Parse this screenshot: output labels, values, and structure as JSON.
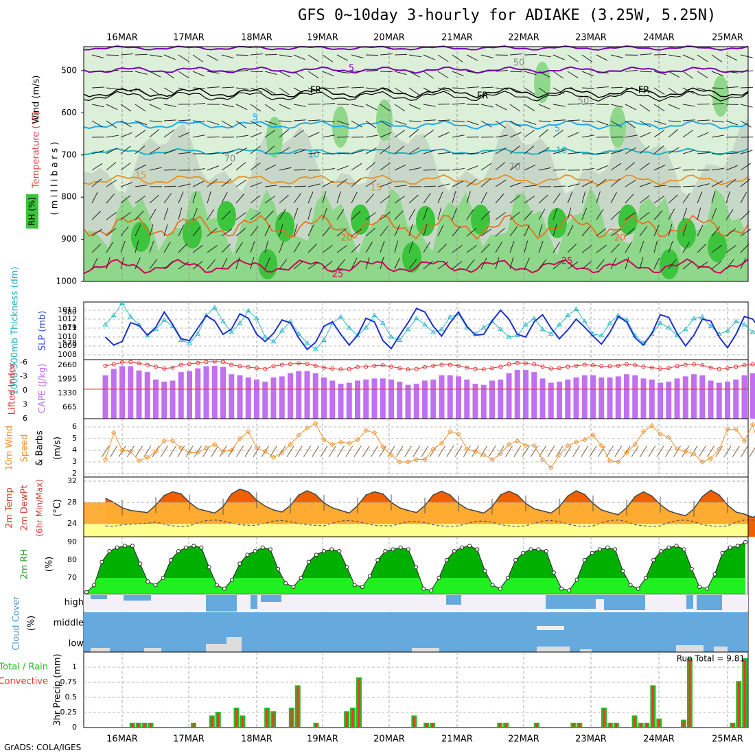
{
  "title": "GFS 0~10day 3-hourly for ADIAKE (3.25W, 5.25N)",
  "credit": "GrADS: COLA/IGES",
  "dates": [
    "16MAR",
    "17MAR",
    "18MAR",
    "19MAR",
    "20MAR",
    "21MAR",
    "22MAR",
    "23MAR",
    "24MAR",
    "25MAR"
  ],
  "colors": {
    "rh_light": "#dcefd9",
    "rh_mid": "#8fd78a",
    "rh_dark": "#3cc43c",
    "purple": "#7a00b8",
    "cyan": "#22a8e8",
    "orange": "#e89020",
    "red": "#d0005a",
    "slp": "#1b2fd0",
    "thick": "#2ab8c8",
    "cape": "#c070f0",
    "li": "#e83030",
    "wind": "#f09030",
    "temp_dark": "#f06000",
    "temp_mid": "#ffaa30",
    "dew": "#ffff90",
    "rh2m_dark": "#00b000",
    "rh2m_light": "#20f020",
    "cloud": "#66aadd",
    "precip_total": "#20c020",
    "precip_conv": "#ff3030"
  },
  "panels": {
    "upper": {
      "ylabel_rh": "RH (%)",
      "ylabel_temp": "Temperature (°C)",
      "ylabel_wind": "Wind (m/s)",
      "ylabel_mb": "( m i l l i b a r s )",
      "pressure_ticks": [
        "500",
        "600",
        "700",
        "800",
        "900",
        "1000"
      ],
      "contour_labels": [
        "5",
        "FR",
        "FR",
        "FR",
        "5",
        "5",
        "10",
        "10",
        "15",
        "15",
        "20",
        "20",
        "25",
        "25",
        "50",
        "50",
        "70",
        "70"
      ]
    },
    "slp": {
      "ylabel_left": "1000-500mb Thickness (dm)",
      "ylabel_right": "SLP (mb)",
      "ticks_left": [
        "580",
        "579",
        "578"
      ],
      "ticks_right": [
        "1013",
        "1012",
        "1011",
        "1010",
        "1009",
        "1008"
      ]
    },
    "cape": {
      "ylabel_left": "Lifted Index",
      "ylabel_right": "CAPE (J/kg)",
      "ticks_left": [
        "-6",
        "-3",
        "0",
        "3",
        "6"
      ],
      "ticks_right": [
        "2660",
        "1995",
        "1330",
        "665"
      ]
    },
    "wind": {
      "ylabel": "10m Wind Speed & Barbs",
      "ylabel_line1": "10m Wind",
      "ylabel_line2": "Speed",
      "ylabel_line3": "& Barbs",
      "unit": "(m/s)",
      "ticks": [
        "6",
        "5",
        "4",
        "3",
        "2"
      ]
    },
    "temp": {
      "ylabel_line1": "2m Temp",
      "ylabel_line2": "2m DewPt",
      "ylabel_line3": "(6hr Min/Max)",
      "unit": "(°C)",
      "ticks": [
        "32",
        "28",
        "24"
      ]
    },
    "rh2m": {
      "ylabel": "2m RH",
      "unit": "(%)",
      "ticks": [
        "90",
        "80",
        "70"
      ]
    },
    "cloud": {
      "ylabel": "Cloud Cover",
      "unit": "(%)",
      "levels": [
        "high",
        "middle",
        "low"
      ]
    },
    "precip": {
      "ylabel_left1": "Total / Rain",
      "ylabel_left2": "Convective",
      "ylabel": "3hr Precip (mm)",
      "ticks": [
        "1",
        "0.75",
        "0.5",
        "0.25",
        "0"
      ],
      "run_total": "Run Total = 9.81"
    }
  },
  "chart_data": [
    {
      "type": "line",
      "name": "slp",
      "title": "SLP",
      "x_step_hours": 3,
      "series": [
        {
          "name": "SLP (mb)",
          "values": [
            1010.0,
            1009.1,
            1009.5,
            1011.6,
            1011.3,
            1010.2,
            1011.1,
            1012.8,
            1011.4,
            1009.8,
            1009.6,
            1011.0,
            1012.4,
            1011.8,
            1010.3,
            1010.9,
            1012.6,
            1012.1,
            1010.3,
            1009.5,
            1010.4,
            1011.9,
            1011.6,
            1009.9,
            1008.6,
            1009.4,
            1011.2,
            1011.7,
            1010.3,
            1009.1,
            1010.2,
            1012.1,
            1011.7,
            1009.6,
            1008.7,
            1010.2,
            1011.6,
            1013.2,
            1012.8,
            1011.2,
            1010.1,
            1011.6,
            1012.8,
            1011.2,
            1010.2,
            1010.3,
            1011.8,
            1013.0,
            1012.0,
            1010.3,
            1010.0,
            1011.7,
            1012.5,
            1011.0,
            1009.8,
            1010.8,
            1012.0,
            1011.1,
            1010.1,
            1009.2,
            1010.5,
            1012.3,
            1011.7,
            1009.9,
            1009.1,
            1010.4,
            1012.5,
            1012.2,
            1010.4,
            1009.0,
            1010.2,
            1012.0,
            1011.8,
            1010.0,
            1008.8,
            1010.3,
            1012.3,
            1012.0,
            1010.7
          ]
        },
        {
          "name": "Thickness (dm)",
          "values": [
            579.2,
            579.8,
            580.6,
            579.7,
            579.2,
            578.5,
            578.9,
            579.5,
            579.1,
            578.2,
            578.0,
            578.6,
            579.8,
            580.3,
            579.4,
            578.7,
            579.3,
            580.1,
            579.6,
            578.4,
            578.1,
            578.8,
            579.4,
            578.6,
            578.0,
            577.6,
            578.2,
            579.3,
            579.7,
            579.0,
            578.5,
            579.0,
            579.8,
            579.3,
            578.4,
            578.2,
            578.9,
            579.6,
            579.2,
            578.7,
            578.9,
            579.7,
            579.9,
            579.0,
            578.6,
            579.0,
            579.4,
            578.9,
            578.4,
            578.5,
            579.2,
            579.6,
            578.9,
            578.6,
            579.2,
            579.8,
            580.2,
            579.4,
            578.6,
            578.5,
            579.3,
            579.8,
            579.5,
            578.5,
            578.0,
            578.6,
            579.3,
            579.0,
            578.5,
            578.9,
            579.6,
            579.7,
            579.1,
            578.6,
            578.8,
            579.4,
            579.2,
            578.7,
            579.0
          ]
        }
      ]
    },
    {
      "type": "bar",
      "name": "cape",
      "title": "CAPE & Lifted Index",
      "x_step_hours": 3,
      "series": [
        {
          "name": "CAPE (J/kg)",
          "values": [
            2050,
            2350,
            2480,
            2480,
            2280,
            2200,
            1850,
            1750,
            1800,
            2200,
            2250,
            2380,
            2480,
            2500,
            2450,
            2100,
            2050,
            1950,
            1850,
            1750,
            1950,
            2000,
            2150,
            2250,
            2250,
            2150,
            1950,
            1800,
            1650,
            1700,
            1800,
            1850,
            1900,
            1900,
            1850,
            1750,
            1600,
            1650,
            1800,
            1850,
            2050,
            2050,
            2000,
            1850,
            1650,
            1600,
            1800,
            1850,
            2150,
            2300,
            2300,
            2200,
            1900,
            1700,
            1750,
            1850,
            1950,
            2050,
            2050,
            1950,
            1950,
            2000,
            2100,
            2050,
            1900,
            1850,
            1700,
            1750,
            1900,
            2000,
            2100,
            2050,
            1800,
            1700,
            1750,
            1850,
            2050,
            2150,
            2050
          ]
        },
        {
          "name": "Lifted Index",
          "values": [
            -5.0,
            -5.3,
            -5.7,
            -5.8,
            -5.5,
            -5.2,
            -4.8,
            -4.4,
            -4.6,
            -5.2,
            -5.4,
            -5.6,
            -5.8,
            -5.9,
            -5.8,
            -5.2,
            -4.9,
            -4.7,
            -4.5,
            -4.3,
            -4.9,
            -5.2,
            -5.4,
            -5.5,
            -5.4,
            -5.0,
            -4.6,
            -4.4,
            -4.2,
            -4.3,
            -4.7,
            -4.8,
            -5.0,
            -5.1,
            -4.8,
            -4.5,
            -4.2,
            -4.3,
            -4.7,
            -5.0,
            -5.2,
            -5.2,
            -5.0,
            -4.6,
            -4.3,
            -4.2,
            -4.5,
            -4.8,
            -5.3,
            -5.6,
            -5.5,
            -5.3,
            -4.8,
            -4.4,
            -4.5,
            -4.8,
            -5.0,
            -5.2,
            -5.1,
            -4.9,
            -4.9,
            -5.0,
            -5.3,
            -5.1,
            -4.8,
            -4.6,
            -4.4,
            -4.5,
            -4.9,
            -5.2,
            -5.3,
            -5.1,
            -4.6,
            -4.3,
            -4.5,
            -4.8,
            -5.1,
            -5.3,
            -5.1
          ]
        }
      ]
    },
    {
      "type": "line",
      "name": "wind10m",
      "title": "10m Wind Speed",
      "ylabel": "(m/s)",
      "x_step_hours": 3,
      "series": [
        {
          "name": "10m Wind Speed (m/s)",
          "values": [
            3.2,
            5.5,
            4.0,
            3.9,
            3.1,
            3.4,
            3.9,
            4.8,
            4.8,
            4.2,
            3.8,
            3.8,
            4.2,
            4.5,
            3.9,
            4.0,
            5.0,
            5.6,
            4.2,
            3.9,
            3.4,
            3.8,
            4.5,
            5.3,
            5.9,
            6.3,
            4.9,
            4.5,
            4.7,
            4.6,
            4.9,
            5.7,
            5.5,
            4.3,
            3.6,
            3.0,
            3.0,
            3.2,
            3.2,
            4.1,
            4.6,
            5.6,
            5.4,
            4.1,
            3.9,
            3.6,
            3.2,
            3.7,
            4.5,
            4.8,
            4.4,
            4.4,
            3.2,
            2.5,
            3.6,
            4.4,
            4.7,
            4.9,
            5.3,
            4.4,
            3.1,
            3.0,
            3.8,
            4.5,
            5.6,
            6.1,
            5.4,
            5.1,
            4.1,
            3.9,
            3.7,
            3.0,
            3.3,
            4.1,
            5.8,
            5.8,
            4.8,
            6.2,
            3.5,
            3.3,
            3.3
          ]
        }
      ]
    },
    {
      "type": "area",
      "name": "temp2m",
      "title": "2m Temp / DewPt",
      "ylabel": "(°C)",
      "x_step_hours": 3,
      "series": [
        {
          "name": "2m Temp",
          "values": [
            28.8,
            28.0,
            27.0,
            26.5,
            26.3,
            26.1,
            27.5,
            29.3,
            30.0,
            29.6,
            28.0,
            26.8,
            26.4,
            26.0,
            27.2,
            29.6,
            30.5,
            30.0,
            28.4,
            27.3,
            26.6,
            26.2,
            27.4,
            29.4,
            30.2,
            29.5,
            27.9,
            27.0,
            26.5,
            26.0,
            27.4,
            29.4,
            30.0,
            29.6,
            28.0,
            27.0,
            26.5,
            26.1,
            27.4,
            29.4,
            30.1,
            29.4,
            27.8,
            26.8,
            26.4,
            26.0,
            27.2,
            29.4,
            30.1,
            29.4,
            27.8,
            26.8,
            26.4,
            26.0,
            27.2,
            29.2,
            30.2,
            29.5,
            27.8,
            26.6,
            26.1,
            25.7,
            27.0,
            29.1,
            30.0,
            29.2,
            27.6,
            26.4,
            25.9,
            25.5,
            26.8,
            29.1,
            30.3,
            29.4,
            27.5,
            26.2,
            25.8,
            25.2,
            26.0
          ]
        },
        {
          "name": "2m DewPt",
          "values": [
            23.6,
            23.5,
            23.8,
            23.9,
            24.0,
            24.1,
            24.3,
            23.9,
            23.6,
            23.5,
            23.6,
            24.2,
            24.6,
            24.7,
            24.5,
            24.1,
            23.8,
            23.7,
            23.7,
            24.1,
            24.5,
            24.6,
            24.4,
            24.0,
            23.8,
            23.7,
            23.6,
            24.1,
            24.5,
            24.6,
            24.4,
            24.0,
            23.7,
            23.6,
            23.6,
            24.0,
            24.4,
            24.4,
            24.2,
            23.8,
            23.6,
            23.5,
            23.6,
            24.0,
            24.4,
            24.5,
            24.3,
            23.8,
            23.6,
            23.5,
            23.6,
            24.1,
            24.5,
            24.6,
            24.4,
            23.9,
            23.6,
            23.5,
            23.6,
            24.2,
            24.6,
            24.7,
            24.4,
            23.8,
            23.6,
            23.5,
            23.6,
            24.2,
            24.6,
            24.7,
            24.4,
            23.8,
            23.6,
            23.5,
            23.6,
            24.3,
            24.7,
            24.7,
            24.4
          ]
        }
      ]
    },
    {
      "type": "area",
      "name": "rh2m",
      "title": "2m RH",
      "ylabel": "(%)",
      "x_step_hours": 3,
      "series": [
        {
          "name": "2m RH (%)",
          "values": [
            62,
            66,
            79,
            85,
            87,
            88,
            88,
            78,
            68,
            66,
            70,
            80,
            85,
            87,
            88,
            87,
            76,
            66,
            64,
            69,
            78,
            83,
            85,
            87,
            86,
            75,
            67,
            65,
            70,
            79,
            83,
            85,
            86,
            85,
            76,
            66,
            65,
            71,
            80,
            85,
            86,
            87,
            86,
            76,
            64,
            63,
            70,
            80,
            85,
            87,
            88,
            86,
            74,
            66,
            64,
            70,
            80,
            84,
            86,
            86,
            85,
            73,
            64,
            63,
            69,
            80,
            84,
            86,
            87,
            86,
            74,
            66,
            64,
            70,
            80,
            85,
            87,
            88,
            86,
            75,
            65,
            64,
            72,
            84,
            87,
            88,
            90
          ]
        }
      ]
    },
    {
      "type": "bar",
      "name": "precip",
      "title": "3hr Precip",
      "ylabel": "3hr Precip (mm)",
      "x_step_hours": 3,
      "series": [
        {
          "name": "Total / Rain (mm)",
          "values": [
            0,
            0,
            0,
            0.08,
            0.08,
            0.08,
            0.08,
            0,
            0,
            0,
            0,
            0,
            0,
            0.08,
            0,
            0,
            0.2,
            0.26,
            0,
            0,
            0.33,
            0.2,
            0,
            0,
            0,
            0.33,
            0.27,
            0,
            0,
            0.33,
            0.7,
            0,
            0,
            0.08,
            0,
            0,
            0,
            0,
            0.27,
            0.33,
            0.83,
            0,
            0,
            0,
            0,
            0,
            0,
            0,
            0,
            0.2,
            0,
            0.08,
            0.08,
            0,
            0,
            0,
            0,
            0,
            0,
            0,
            0,
            0,
            0,
            0.08,
            0.08,
            0,
            0,
            0,
            0,
            0.08,
            0,
            0,
            0,
            0,
            0,
            0.08,
            0.08,
            0,
            0,
            0,
            0.33,
            0.08,
            0.08,
            0,
            0,
            0.2,
            0.08,
            0.08,
            0.7,
            0.15,
            0,
            0,
            0,
            0.13,
            1.15,
            0,
            0,
            0,
            0,
            0,
            0,
            0.08,
            0.77,
            1.15
          ]
        },
        {
          "name": "Convective (mm)",
          "values": [
            0,
            0,
            0,
            0.07,
            0.07,
            0.07,
            0.07,
            0,
            0,
            0,
            0,
            0,
            0,
            0.07,
            0,
            0,
            0.18,
            0.24,
            0,
            0,
            0.31,
            0.18,
            0,
            0,
            0,
            0.31,
            0.25,
            0,
            0,
            0.31,
            0.68,
            0,
            0,
            0.07,
            0,
            0,
            0,
            0,
            0.25,
            0.31,
            0.81,
            0,
            0,
            0,
            0,
            0,
            0,
            0,
            0,
            0.18,
            0,
            0.07,
            0.07,
            0,
            0,
            0,
            0,
            0,
            0,
            0,
            0,
            0,
            0,
            0.07,
            0.07,
            0,
            0,
            0,
            0,
            0.07,
            0,
            0,
            0,
            0,
            0,
            0.07,
            0.07,
            0,
            0,
            0,
            0.31,
            0.07,
            0.07,
            0,
            0,
            0.18,
            0.07,
            0.07,
            0.68,
            0.13,
            0,
            0,
            0,
            0.11,
            1.13,
            0,
            0,
            0,
            0,
            0,
            0,
            0.07,
            0.75,
            1.13
          ]
        }
      ]
    }
  ]
}
